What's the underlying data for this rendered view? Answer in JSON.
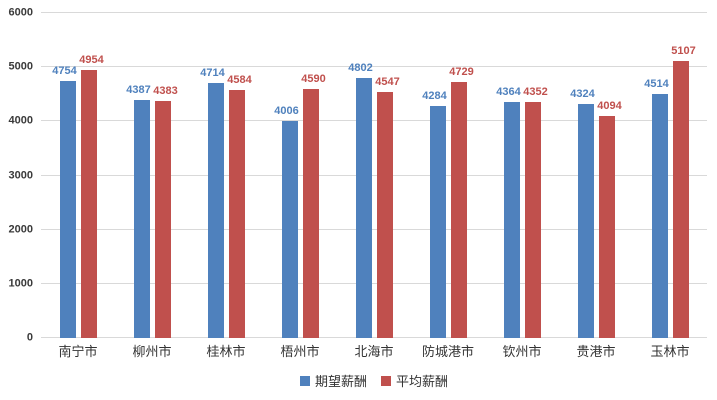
{
  "chart_data": {
    "type": "bar",
    "categories": [
      "南宁市",
      "柳州市",
      "桂林市",
      "梧州市",
      "北海市",
      "防城港市",
      "钦州市",
      "贵港市",
      "玉林市"
    ],
    "series": [
      {
        "name": "期望薪酬",
        "color": "#4F81BD",
        "values": [
          4754,
          4387,
          4714,
          4006,
          4802,
          4284,
          4364,
          4324,
          4514
        ]
      },
      {
        "name": "平均薪酬",
        "color": "#C0504D",
        "values": [
          4954,
          4383,
          4584,
          4590,
          4547,
          4729,
          4352,
          4094,
          5107
        ]
      }
    ],
    "title": "",
    "xlabel": "",
    "ylabel": "",
    "ylim": [
      0,
      6000
    ],
    "yticks": [
      0,
      1000,
      2000,
      3000,
      4000,
      5000,
      6000
    ],
    "grid": true,
    "grid_color": "#D9D9D9",
    "data_labels": true,
    "legend_position": "bottom"
  }
}
